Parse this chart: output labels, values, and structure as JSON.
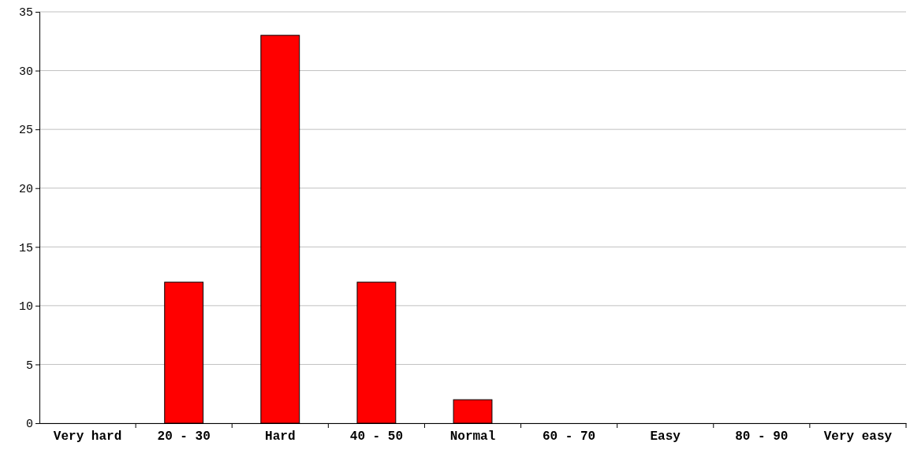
{
  "chart_data": {
    "type": "bar",
    "categories": [
      "Very hard",
      "20 - 30",
      "Hard",
      "40 - 50",
      "Normal",
      "60 - 70",
      "Easy",
      "80 - 90",
      "Very easy"
    ],
    "values": [
      0,
      12,
      33,
      12,
      2,
      0,
      0,
      0,
      0
    ],
    "color": "#ff0000",
    "ylim": [
      0,
      35
    ],
    "yticks": [
      0,
      5,
      10,
      15,
      20,
      25,
      30,
      35
    ],
    "grid": "y"
  }
}
